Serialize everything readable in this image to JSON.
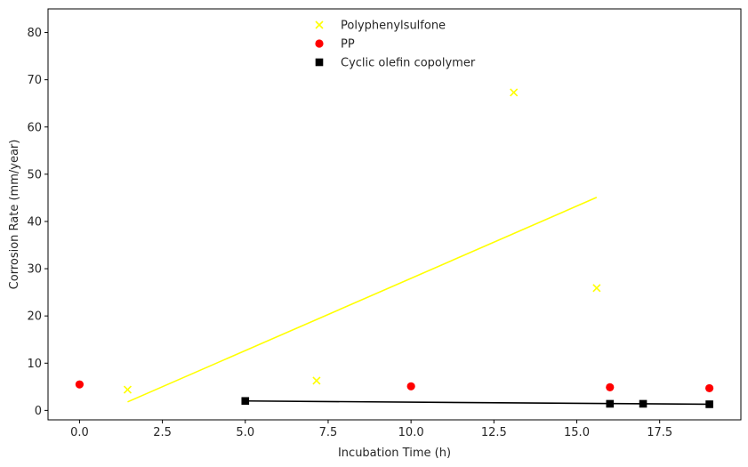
{
  "chart_data": {
    "type": "scatter",
    "xlabel": "Incubation Time (h)",
    "ylabel": "Corrosion Rate (mm/year)",
    "xlim": [
      -0.95,
      19.95
    ],
    "ylim": [
      -2,
      85
    ],
    "xticks": [
      0.0,
      2.5,
      5.0,
      7.5,
      10.0,
      12.5,
      15.0,
      17.5
    ],
    "xtick_labels": [
      "0.0",
      "2.5",
      "5.0",
      "7.5",
      "10.0",
      "12.5",
      "15.0",
      "17.5"
    ],
    "yticks": [
      0,
      10,
      20,
      30,
      40,
      50,
      60,
      70,
      80
    ],
    "ytick_labels": [
      "0",
      "10",
      "20",
      "30",
      "40",
      "50",
      "60",
      "70",
      "80"
    ],
    "grid": false,
    "legend": "top-center",
    "series": [
      {
        "name": "Polyphenylsulfone",
        "marker": "x",
        "color": "#ffff00",
        "x": [
          1.45,
          7.15,
          13.1,
          15.6
        ],
        "y": [
          4.4,
          6.3,
          67.3,
          25.9
        ],
        "trend": {
          "x": [
            1.45,
            15.6
          ],
          "y": [
            1.8,
            45.1
          ]
        }
      },
      {
        "name": "PP",
        "marker": "circle",
        "color": "#ff0000",
        "x": [
          0,
          10,
          16,
          19
        ],
        "y": [
          5.5,
          5.1,
          4.9,
          4.7
        ]
      },
      {
        "name": "Cyclic olefin copolymer",
        "marker": "square",
        "color": "#000000",
        "x": [
          5,
          16,
          17,
          19
        ],
        "y": [
          2.0,
          1.4,
          1.4,
          1.3
        ],
        "trend": {
          "x": [
            5,
            19
          ],
          "y": [
            2.0,
            1.3
          ]
        }
      }
    ]
  }
}
